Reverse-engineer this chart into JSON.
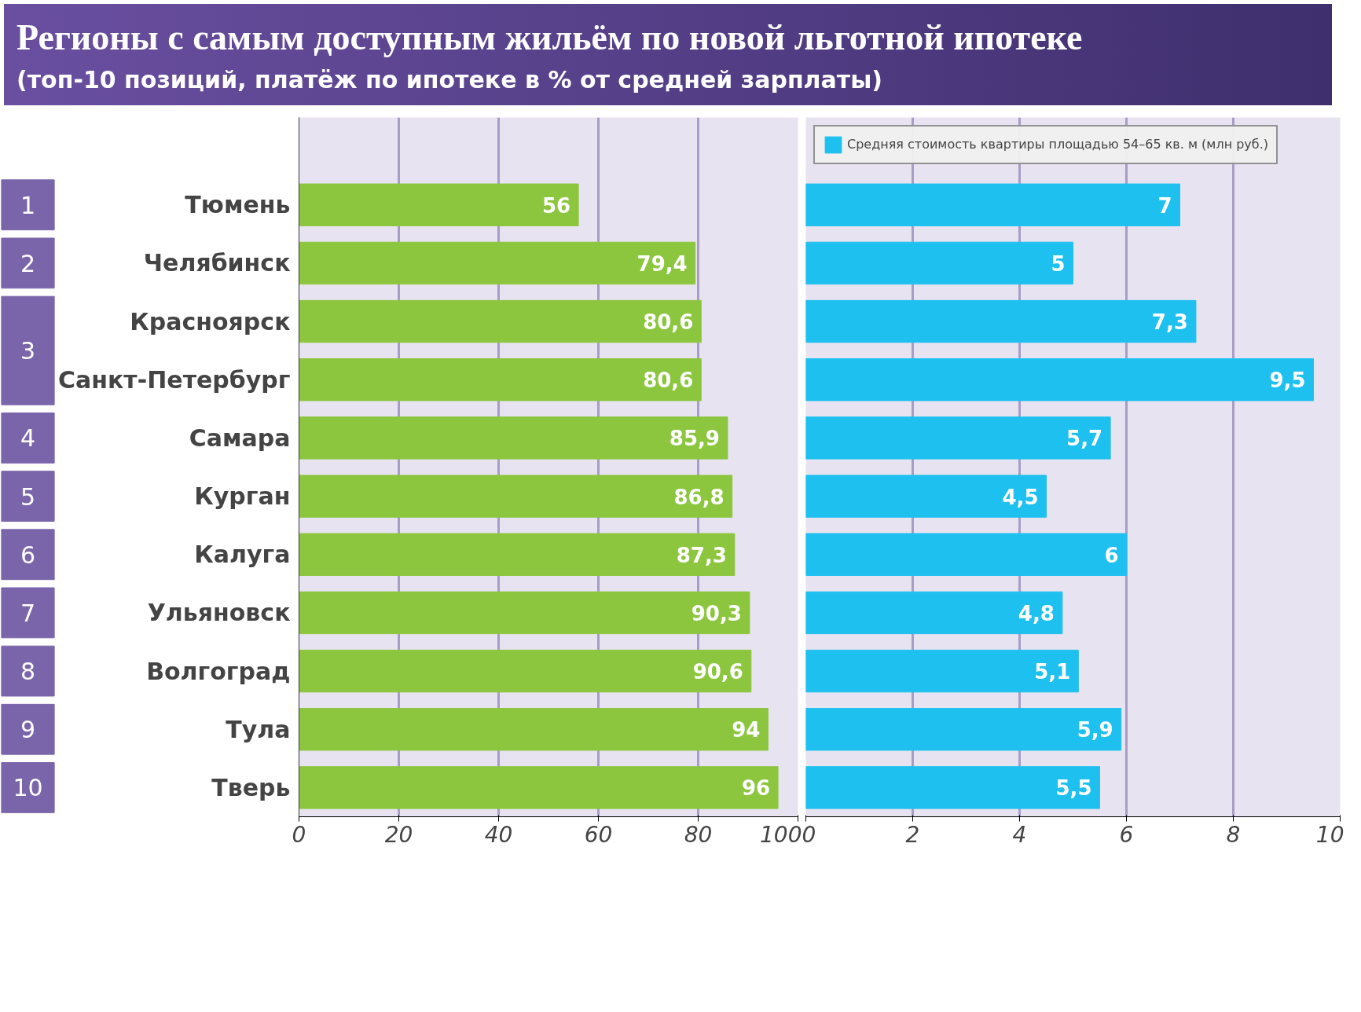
{
  "chart_data": [
    {
      "type": "bar",
      "orientation": "horizontal",
      "title": "Регионы с самым доступным жильём по новой льготной ипотеке",
      "subtitle": "(топ-10 позиций, платёж по ипотеке в % от средней зарплаты)",
      "categories": [
        "Тюмень",
        "Челябинск",
        "Красноярск",
        "Санкт-Петербург",
        "Самара",
        "Курган",
        "Калуга",
        "Ульяновск",
        "Волгоград",
        "Тула",
        "Тверь"
      ],
      "values": [
        56,
        79.4,
        80.6,
        80.6,
        85.9,
        86.8,
        87.3,
        90.3,
        90.6,
        94,
        96
      ],
      "value_labels": [
        "56",
        "79,4",
        "80,6",
        "80,6",
        "85,9",
        "86,8",
        "87,3",
        "90,3",
        "90,6",
        "94",
        "96"
      ],
      "color": "#8cc63f",
      "xlim": [
        0,
        100
      ],
      "xticks": [
        0,
        20,
        40,
        60,
        80,
        100
      ],
      "grid": "x",
      "annotations": [
        "1",
        "2",
        "3",
        "4",
        "5",
        "6",
        "7",
        "8",
        "9",
        "10"
      ]
    },
    {
      "type": "bar",
      "orientation": "horizontal",
      "categories": [
        null,
        null,
        null,
        null,
        null,
        null,
        null,
        null,
        null,
        null,
        null
      ],
      "series": [
        {
          "name": "Средняя стоимость квартиры площадью 54–65 кв. м (млн руб.)",
          "color": "#1ec0f0",
          "values": [
            7,
            5,
            7.3,
            9.5,
            5.7,
            4.5,
            6,
            4.8,
            5.1,
            5.9,
            5.5
          ],
          "value_labels": [
            "7",
            "5",
            "7,3",
            "9,5",
            "5,7",
            "4,5",
            "6",
            "4,8",
            "5,1",
            "5,9",
            "5,5"
          ]
        }
      ],
      "xlim": [
        0,
        10
      ],
      "xticks": [
        0,
        2,
        4,
        6,
        8,
        10
      ],
      "grid": "x",
      "legend": "top",
      "tick_labels": "x"
    }
  ]
}
